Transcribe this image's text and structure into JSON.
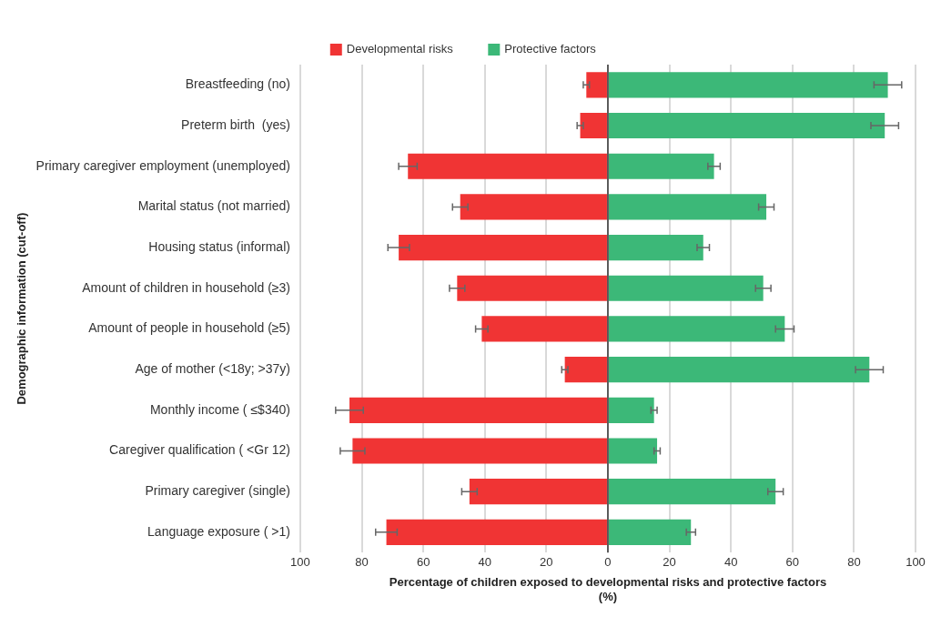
{
  "chart_data": {
    "type": "bar",
    "orientation": "horizontal",
    "xlabel": "Percentage of children exposed to developmental risks and protective factors\n(%)",
    "ylabel": "Demographic information (cut-off)",
    "categories": [
      "Breastfeeding (no)",
      "Preterm birth  (yes)",
      "Primary caregiver employment (unemployed)",
      "Marital status (not married)",
      "Housing status (informal)",
      "Amount of children in household (≥3)",
      "Amount of people in household (≥5)",
      "Age of mother (<18y; >37y)",
      "Monthly income ( ≤$340)",
      "Caregiver qualification ( <Gr 12)",
      "Primary caregiver (single)",
      "Language exposure ( >1)"
    ],
    "series": [
      {
        "name": "Developmental risks",
        "color": "#f03434",
        "values": [
          -7,
          -9,
          -65,
          -48,
          -68,
          -49,
          -41,
          -14,
          -84,
          -83,
          -45,
          -72
        ],
        "errors": [
          1,
          1,
          3,
          2.5,
          3.5,
          2.5,
          2,
          1,
          4.5,
          4,
          2.5,
          3.5
        ]
      },
      {
        "name": "Protective factors",
        "color": "#3cb878",
        "values": [
          91,
          90,
          34.5,
          51.5,
          31,
          50.5,
          57.5,
          85,
          15,
          16,
          54.5,
          27
        ],
        "errors": [
          4.5,
          4.5,
          2,
          2.5,
          2,
          2.5,
          3,
          4.5,
          1,
          1,
          2.5,
          1.5
        ]
      }
    ],
    "xlim": [
      -100,
      100
    ],
    "xticks": [
      {
        "value": -100,
        "label": "100"
      },
      {
        "value": -80,
        "label": "80"
      },
      {
        "value": -60,
        "label": "60"
      },
      {
        "value": -40,
        "label": "40"
      },
      {
        "value": -20,
        "label": "20"
      },
      0,
      20,
      40,
      60,
      80,
      100
    ],
    "grid": "x",
    "legend": "top",
    "stacked": true
  }
}
